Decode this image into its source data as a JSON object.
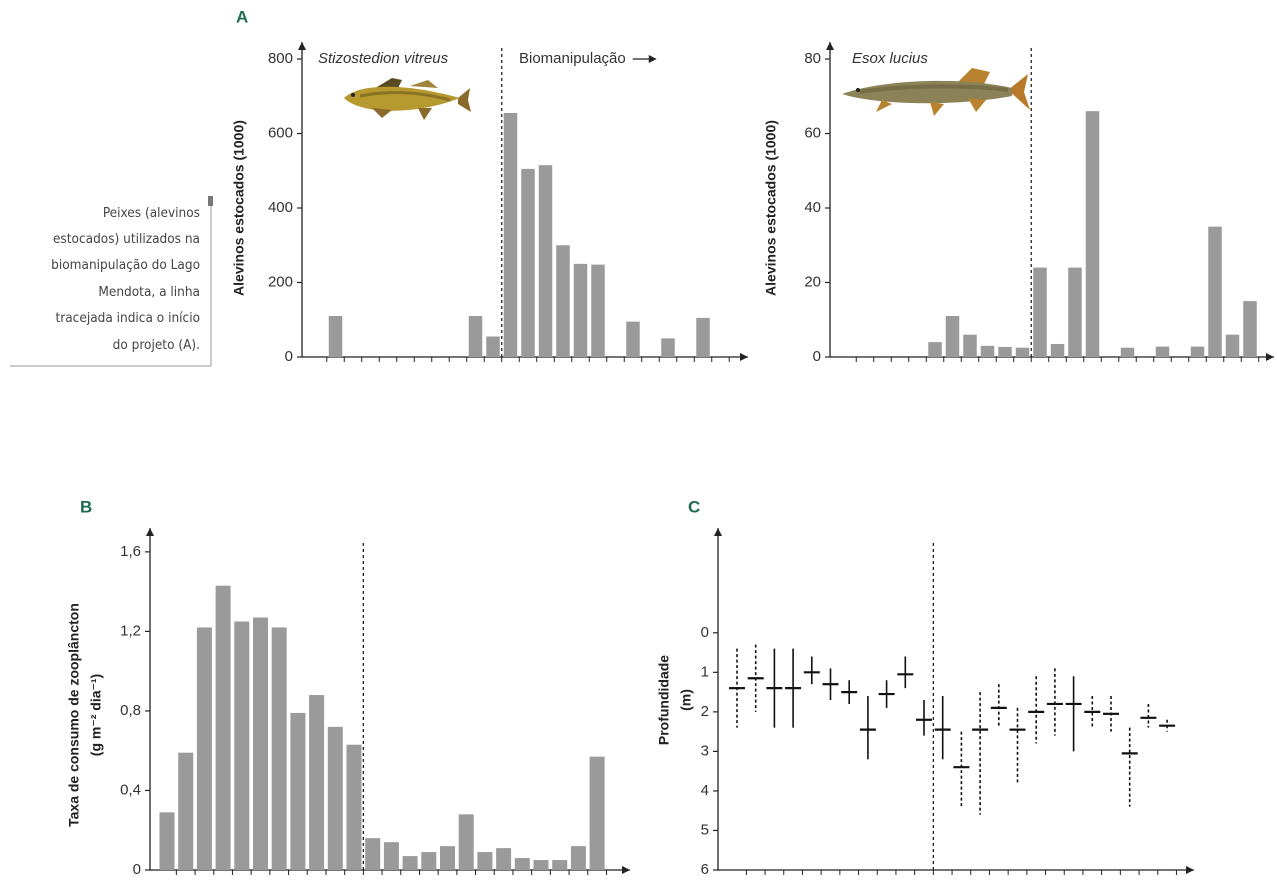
{
  "caption": [
    "Peixes (alevinos",
    "estocados) utilizados na",
    "biomanipulação do Lago",
    "Mendota, a linha",
    "tracejada indica o início",
    "do projeto (A)."
  ],
  "chart_data": [
    {
      "type": "bar",
      "panel": "A",
      "ylabel": "Alevinos estocados (1000)",
      "annotations": [
        "Stizostedion vitreus",
        "Biomanipulação"
      ],
      "categories": [
        null,
        null,
        null,
        null,
        null,
        null,
        null,
        null,
        null,
        null,
        null,
        null,
        null,
        null,
        null,
        null,
        null,
        null,
        null,
        null,
        null,
        null,
        null,
        null
      ],
      "values": [
        0,
        110,
        0,
        0,
        0,
        0,
        0,
        0,
        0,
        110,
        55,
        655,
        505,
        515,
        300,
        250,
        248,
        0,
        95,
        0,
        50,
        0,
        105,
        0
      ],
      "color": "#9a9a9a",
      "ylim": [
        0,
        800
      ],
      "yticks": [
        0,
        200,
        400,
        600,
        800
      ],
      "divider_before": 11
    },
    {
      "type": "bar",
      "ylabel": "Alevinos estocados (1000)",
      "annotations": [
        "Esox lucius"
      ],
      "categories": [
        null,
        null,
        null,
        null,
        null,
        null,
        null,
        null,
        null,
        null,
        null,
        null,
        null,
        null,
        null,
        null,
        null,
        null,
        null,
        null,
        null,
        null,
        null,
        null
      ],
      "values": [
        0,
        0,
        0,
        0,
        0,
        4,
        11,
        6,
        3,
        2.7,
        2.5,
        24,
        3.5,
        24,
        66,
        0,
        2.5,
        0,
        2.8,
        0,
        2.8,
        35,
        6,
        15
      ],
      "color": "#9a9a9a",
      "ylim": [
        0,
        80
      ],
      "yticks": [
        0,
        20,
        40,
        60,
        80
      ],
      "divider_before": 11
    },
    {
      "type": "bar",
      "panel": "B",
      "ylabel": [
        "Taxa de consumo de zooplâncton",
        "(g m⁻² dia⁻¹)"
      ],
      "categories": [
        null,
        null,
        null,
        null,
        null,
        null,
        null,
        null,
        null,
        null,
        null,
        null,
        null,
        null,
        null,
        null,
        null,
        null,
        null,
        null,
        null,
        null,
        null,
        null
      ],
      "values": [
        0.29,
        0.59,
        1.22,
        1.43,
        1.25,
        1.27,
        1.22,
        0.79,
        0.88,
        0.72,
        0.63,
        0.16,
        0.14,
        0.07,
        0.09,
        0.12,
        0.28,
        0.09,
        0.11,
        0.06,
        0.05,
        0.05,
        0.12,
        0.57
      ],
      "color": "#9a9a9a",
      "ylim": [
        0,
        1.7
      ],
      "yticks": [
        0,
        {
          "value": 0.4,
          "label": "0,4"
        },
        {
          "value": 0.8,
          "label": "0,8"
        },
        {
          "value": 1.2,
          "label": "1,2"
        },
        {
          "value": 1.6,
          "label": "1,6"
        }
      ],
      "divider_before": 11
    },
    {
      "type": "range",
      "panel": "C",
      "ylabel": [
        "Profundidade",
        "(m)"
      ],
      "categories": [
        null,
        null,
        null,
        null,
        null,
        null,
        null,
        null,
        null,
        null,
        null,
        null,
        null,
        null,
        null,
        null,
        null,
        null,
        null,
        null,
        null,
        null,
        null,
        null
      ],
      "values": [
        1.4,
        1.15,
        1.4,
        1.4,
        1.0,
        1.3,
        1.5,
        2.45,
        1.55,
        1.05,
        2.2,
        2.45,
        3.4,
        2.45,
        1.9,
        2.45,
        2.0,
        1.8,
        1.8,
        2.0,
        2.05,
        3.05,
        2.15,
        2.35
      ],
      "low": [
        0.4,
        0.3,
        0.4,
        0.4,
        0.6,
        0.9,
        1.2,
        1.6,
        1.2,
        0.6,
        1.7,
        1.6,
        2.5,
        1.5,
        1.3,
        1.9,
        1.1,
        0.9,
        1.1,
        1.6,
        1.6,
        2.4,
        1.8,
        2.2
      ],
      "high": [
        2.4,
        2.0,
        2.4,
        2.4,
        1.3,
        1.7,
        1.8,
        3.2,
        1.9,
        1.4,
        2.6,
        3.2,
        4.4,
        4.6,
        2.4,
        3.8,
        2.8,
        2.6,
        3.0,
        2.4,
        2.5,
        4.4,
        2.4,
        2.5
      ],
      "range_dashed": [
        true,
        true,
        false,
        false,
        false,
        false,
        false,
        false,
        false,
        false,
        false,
        false,
        true,
        true,
        true,
        true,
        true,
        true,
        false,
        true,
        true,
        true,
        true,
        true
      ],
      "color": "#111111",
      "ylim": [
        -2.6,
        6
      ],
      "y_inverted": true,
      "yticks": [
        0,
        1,
        2,
        3,
        4,
        5,
        6
      ],
      "divider_before": 11
    }
  ]
}
